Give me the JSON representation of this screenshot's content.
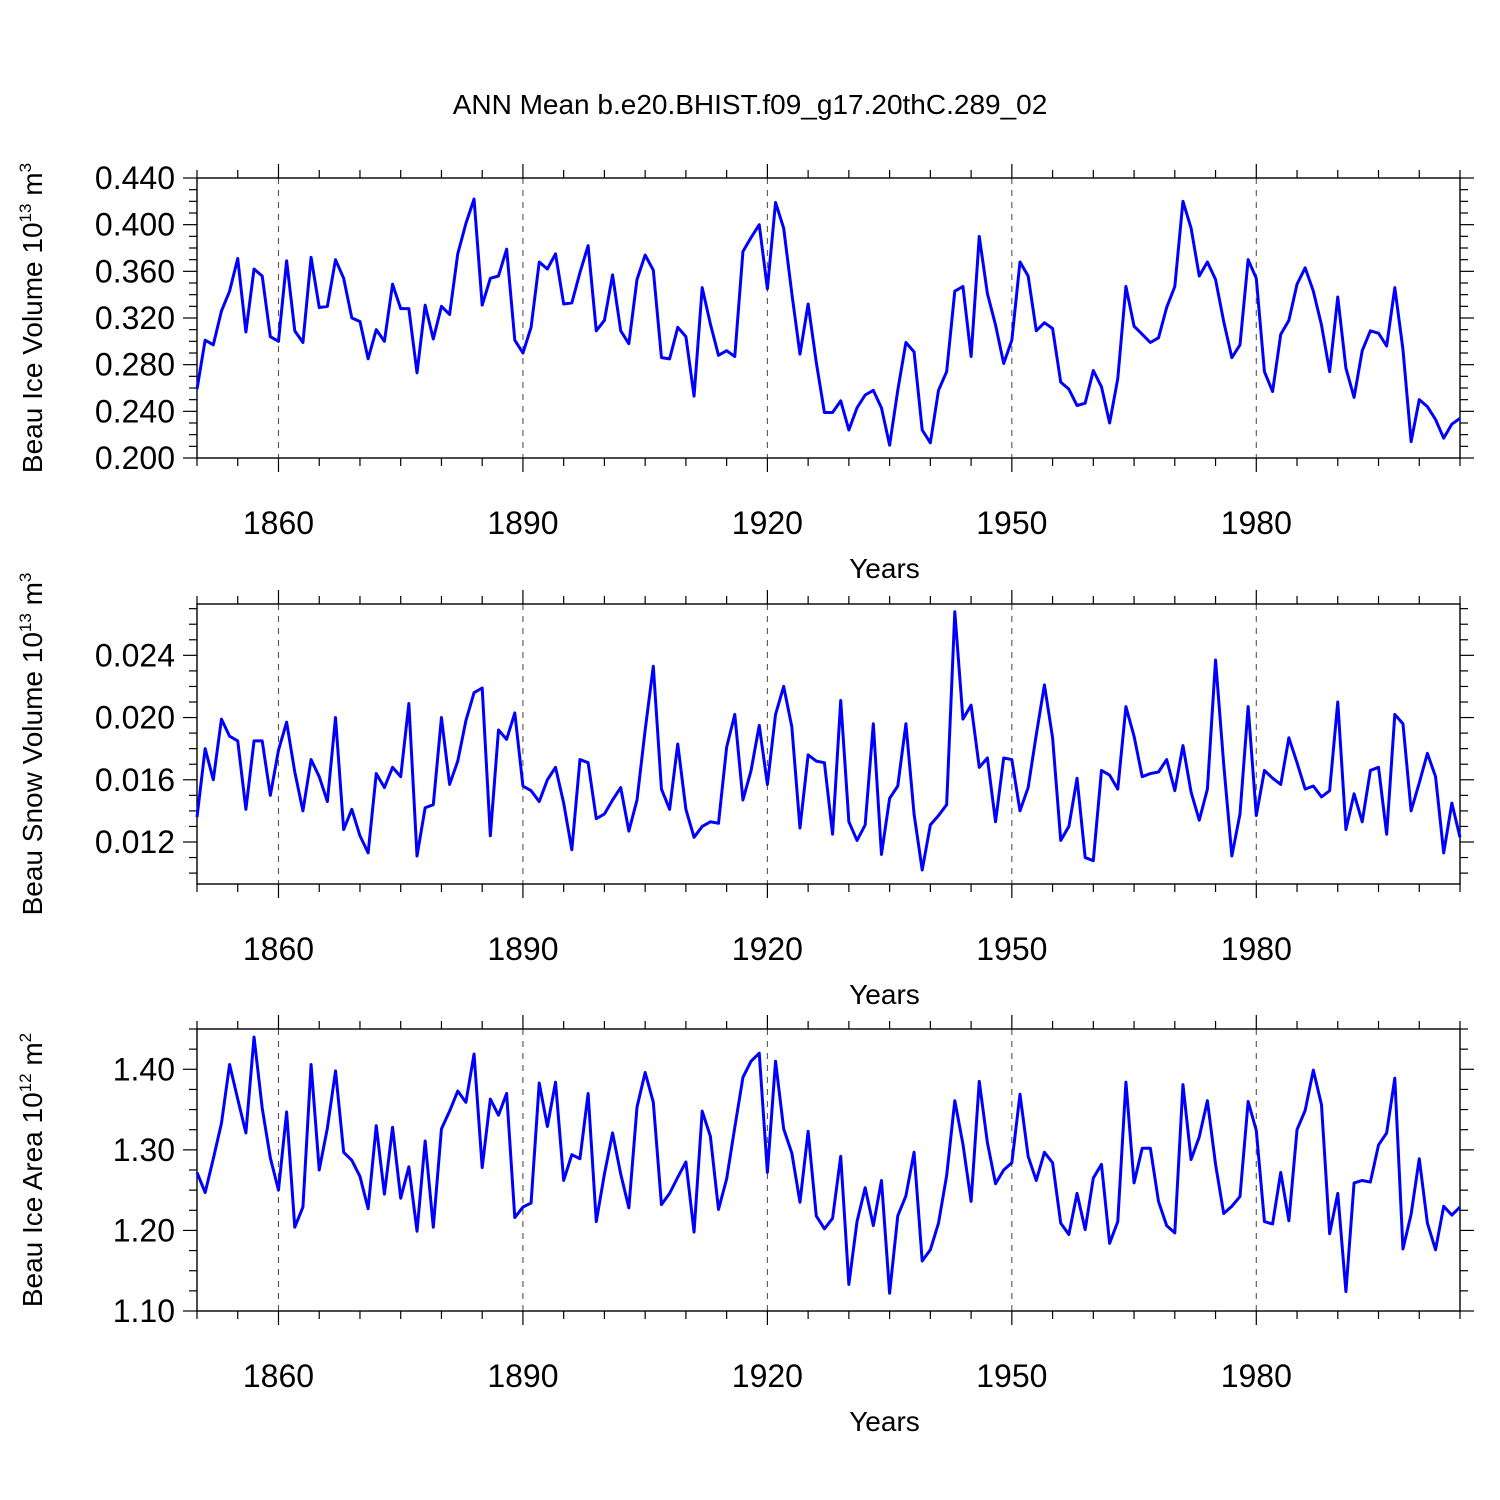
{
  "figure": {
    "title": "ANN Mean b.e20.BHIST.f09_g17.20thC.289_02",
    "line_color": "#0000ff"
  },
  "chart_data": [
    {
      "type": "line",
      "ylabel_main": "Beau Ice Volume 10",
      "ylabel_sup": "13",
      "ylabel_unit": " m",
      "ylabel_unit_sup": "3",
      "xlabel": "Years",
      "xlim": [
        1850,
        2005
      ],
      "ylim": [
        0.2,
        0.44
      ],
      "yticks": [
        0.2,
        0.24,
        0.28,
        0.32,
        0.36,
        0.4,
        0.44
      ],
      "ytick_labels": [
        "0.200",
        "0.240",
        "0.280",
        "0.320",
        "0.360",
        "0.400",
        "0.440"
      ],
      "yminor_step": 0.01,
      "xticks": [
        1860,
        1890,
        1920,
        1950,
        1980
      ],
      "xtick_labels": [
        "1860",
        "1890",
        "1920",
        "1950",
        "1980"
      ],
      "xminor_step": 5,
      "grid_x": [
        1860,
        1890,
        1920,
        1950,
        1980
      ],
      "x_start": 1850,
      "values": [
        0.259,
        0.301,
        0.297,
        0.326,
        0.343,
        0.371,
        0.308,
        0.362,
        0.356,
        0.304,
        0.3,
        0.369,
        0.309,
        0.299,
        0.372,
        0.329,
        0.33,
        0.37,
        0.354,
        0.32,
        0.317,
        0.285,
        0.31,
        0.3,
        0.349,
        0.328,
        0.328,
        0.273,
        0.331,
        0.302,
        0.33,
        0.323,
        0.375,
        0.401,
        0.422,
        0.331,
        0.354,
        0.356,
        0.379,
        0.301,
        0.29,
        0.312,
        0.368,
        0.362,
        0.375,
        0.332,
        0.333,
        0.359,
        0.382,
        0.309,
        0.318,
        0.357,
        0.309,
        0.298,
        0.353,
        0.374,
        0.361,
        0.286,
        0.285,
        0.312,
        0.304,
        0.253,
        0.346,
        0.315,
        0.288,
        0.292,
        0.287,
        0.377,
        0.389,
        0.4,
        0.345,
        0.419,
        0.397,
        0.341,
        0.289,
        0.332,
        0.282,
        0.239,
        0.239,
        0.249,
        0.224,
        0.243,
        0.254,
        0.258,
        0.243,
        0.211,
        0.258,
        0.299,
        0.291,
        0.224,
        0.213,
        0.258,
        0.274,
        0.343,
        0.347,
        0.287,
        0.39,
        0.341,
        0.314,
        0.281,
        0.301,
        0.368,
        0.356,
        0.309,
        0.316,
        0.311,
        0.265,
        0.259,
        0.245,
        0.247,
        0.275,
        0.261,
        0.23,
        0.268,
        0.347,
        0.313,
        0.306,
        0.299,
        0.303,
        0.329,
        0.347,
        0.42,
        0.397,
        0.356,
        0.368,
        0.353,
        0.317,
        0.286,
        0.297,
        0.37,
        0.354,
        0.274,
        0.257,
        0.306,
        0.318,
        0.349,
        0.363,
        0.343,
        0.314,
        0.274,
        0.338,
        0.277,
        0.252,
        0.292,
        0.309,
        0.307,
        0.296,
        0.346,
        0.293,
        0.214,
        0.25,
        0.244,
        0.233,
        0.217,
        0.229,
        0.234
      ]
    },
    {
      "type": "line",
      "ylabel_main": "Beau Snow Volume 10",
      "ylabel_sup": "13",
      "ylabel_unit": " m",
      "ylabel_unit_sup": "3",
      "xlabel": "Years",
      "xlim": [
        1850,
        2005
      ],
      "ylim": [
        0.0093,
        0.0273
      ],
      "yticks": [
        0.012,
        0.016,
        0.02,
        0.024
      ],
      "ytick_labels": [
        "0.012",
        "0.016",
        "0.020",
        "0.024"
      ],
      "yminor_step": 0.001,
      "xticks": [
        1860,
        1890,
        1920,
        1950,
        1980
      ],
      "xtick_labels": [
        "1860",
        "1890",
        "1920",
        "1950",
        "1980"
      ],
      "xminor_step": 5,
      "grid_x": [
        1860,
        1890,
        1920,
        1950,
        1980
      ],
      "x_start": 1850,
      "values": [
        0.0136,
        0.018,
        0.016,
        0.0199,
        0.0188,
        0.0185,
        0.0141,
        0.0185,
        0.0185,
        0.015,
        0.0179,
        0.0197,
        0.0165,
        0.014,
        0.0173,
        0.0162,
        0.0146,
        0.02,
        0.0128,
        0.0141,
        0.0124,
        0.0113,
        0.0164,
        0.0155,
        0.0168,
        0.0162,
        0.0209,
        0.0111,
        0.0142,
        0.0144,
        0.02,
        0.0157,
        0.0172,
        0.0198,
        0.0216,
        0.0219,
        0.0124,
        0.0192,
        0.0186,
        0.0203,
        0.0156,
        0.0153,
        0.0146,
        0.016,
        0.0168,
        0.0145,
        0.0115,
        0.0173,
        0.0171,
        0.0135,
        0.0138,
        0.0147,
        0.0155,
        0.0127,
        0.0147,
        0.0192,
        0.0233,
        0.0154,
        0.0141,
        0.0183,
        0.0141,
        0.0123,
        0.013,
        0.0133,
        0.0132,
        0.0181,
        0.0202,
        0.0147,
        0.0166,
        0.0195,
        0.0157,
        0.0202,
        0.022,
        0.0194,
        0.0129,
        0.0176,
        0.0172,
        0.0171,
        0.0125,
        0.0211,
        0.0133,
        0.0121,
        0.0131,
        0.0196,
        0.0112,
        0.0148,
        0.0156,
        0.0196,
        0.0138,
        0.0102,
        0.0131,
        0.0137,
        0.0144,
        0.0268,
        0.0199,
        0.0208,
        0.0168,
        0.0174,
        0.0133,
        0.0174,
        0.0173,
        0.014,
        0.0155,
        0.0189,
        0.0221,
        0.0187,
        0.0121,
        0.013,
        0.0161,
        0.011,
        0.0108,
        0.0166,
        0.0163,
        0.0154,
        0.0207,
        0.0188,
        0.0162,
        0.0164,
        0.0165,
        0.0173,
        0.0153,
        0.0182,
        0.0152,
        0.0134,
        0.0154,
        0.0237,
        0.017,
        0.0111,
        0.0138,
        0.0207,
        0.0137,
        0.0166,
        0.0161,
        0.0157,
        0.0187,
        0.0171,
        0.0154,
        0.0156,
        0.0149,
        0.0153,
        0.021,
        0.0128,
        0.0151,
        0.0133,
        0.0166,
        0.0168,
        0.0125,
        0.0202,
        0.0196,
        0.014,
        0.0158,
        0.0177,
        0.0162,
        0.0113,
        0.0145,
        0.0123
      ]
    },
    {
      "type": "line",
      "ylabel_main": "Beau Ice Area 10",
      "ylabel_sup": "12",
      "ylabel_unit": " m",
      "ylabel_unit_sup": "2",
      "xlabel": "Years",
      "xlim": [
        1850,
        2005
      ],
      "ylim": [
        1.1,
        1.45
      ],
      "yticks": [
        1.1,
        1.2,
        1.3,
        1.4
      ],
      "ytick_labels": [
        "1.10",
        "1.20",
        "1.30",
        "1.40"
      ],
      "yminor_step": 0.025,
      "xticks": [
        1860,
        1890,
        1920,
        1950,
        1980
      ],
      "xtick_labels": [
        "1860",
        "1890",
        "1920",
        "1950",
        "1980"
      ],
      "xminor_step": 5,
      "grid_x": [
        1860,
        1890,
        1920,
        1950,
        1980
      ],
      "x_start": 1850,
      "values": [
        1.272,
        1.247,
        1.289,
        1.333,
        1.406,
        1.363,
        1.321,
        1.44,
        1.352,
        1.29,
        1.25,
        1.347,
        1.204,
        1.229,
        1.406,
        1.275,
        1.327,
        1.398,
        1.297,
        1.287,
        1.267,
        1.227,
        1.33,
        1.245,
        1.328,
        1.24,
        1.279,
        1.199,
        1.311,
        1.204,
        1.326,
        1.348,
        1.373,
        1.359,
        1.419,
        1.278,
        1.363,
        1.343,
        1.37,
        1.216,
        1.229,
        1.234,
        1.383,
        1.329,
        1.384,
        1.262,
        1.294,
        1.289,
        1.37,
        1.211,
        1.27,
        1.321,
        1.27,
        1.228,
        1.353,
        1.396,
        1.359,
        1.232,
        1.246,
        1.266,
        1.285,
        1.198,
        1.348,
        1.317,
        1.226,
        1.264,
        1.328,
        1.39,
        1.41,
        1.42,
        1.272,
        1.41,
        1.326,
        1.296,
        1.235,
        1.323,
        1.218,
        1.202,
        1.215,
        1.292,
        1.133,
        1.211,
        1.253,
        1.206,
        1.262,
        1.122,
        1.218,
        1.243,
        1.297,
        1.162,
        1.176,
        1.209,
        1.268,
        1.361,
        1.307,
        1.236,
        1.385,
        1.309,
        1.258,
        1.275,
        1.284,
        1.369,
        1.292,
        1.262,
        1.297,
        1.284,
        1.209,
        1.195,
        1.246,
        1.201,
        1.265,
        1.282,
        1.184,
        1.211,
        1.384,
        1.259,
        1.302,
        1.302,
        1.236,
        1.206,
        1.197,
        1.381,
        1.288,
        1.316,
        1.361,
        1.282,
        1.221,
        1.23,
        1.242,
        1.36,
        1.324,
        1.211,
        1.208,
        1.272,
        1.212,
        1.325,
        1.349,
        1.399,
        1.356,
        1.196,
        1.246,
        1.124,
        1.259,
        1.262,
        1.26,
        1.306,
        1.321,
        1.389,
        1.177,
        1.22,
        1.289,
        1.209,
        1.176,
        1.23,
        1.219,
        1.229
      ]
    }
  ]
}
